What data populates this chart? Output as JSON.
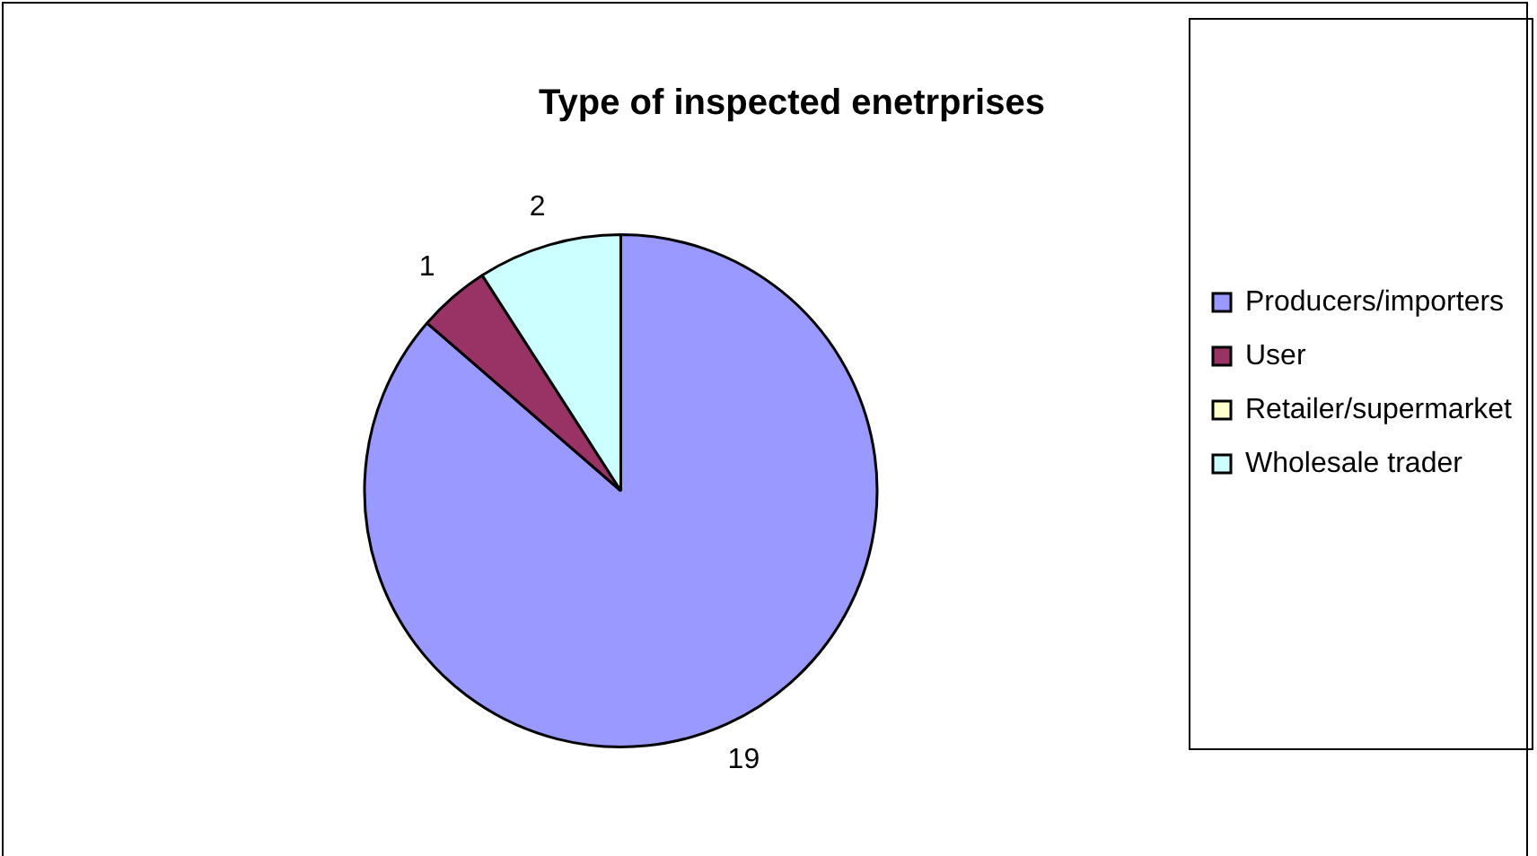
{
  "chart_data": {
    "type": "pie",
    "title": "Type of inspected enetrprises",
    "categories": [
      "Producers/importers",
      "User",
      "Retailer/supermarket",
      "Wholesale trader"
    ],
    "values": [
      19,
      1,
      0,
      2
    ],
    "colors": [
      "#9999ff",
      "#993366",
      "#ffffcc",
      "#ccffff"
    ],
    "value_labels": [
      "19",
      "1",
      null,
      "2"
    ],
    "legend": "right"
  }
}
